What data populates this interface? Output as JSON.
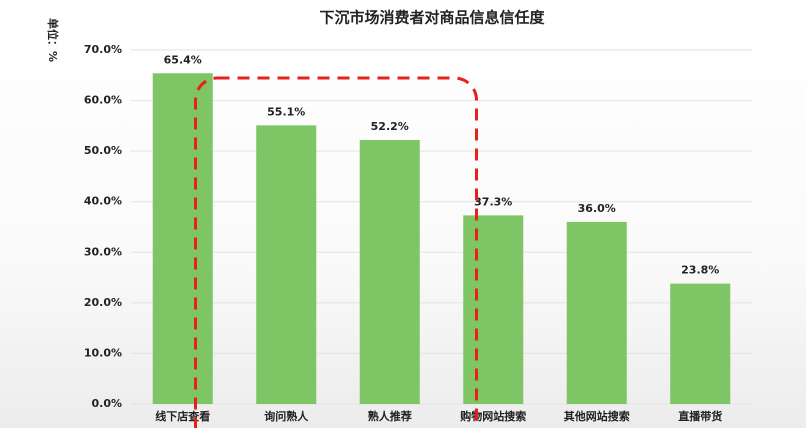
{
  "chart_data": {
    "type": "bar",
    "title": "下沉市场消费者对商品信息信任度",
    "y_label": "单位：%",
    "categories": [
      "线下店查看",
      "询问熟人",
      "熟人推荐",
      "购物网站搜索",
      "其他网站搜索",
      "直播带货"
    ],
    "values": [
      65.4,
      55.1,
      52.2,
      37.3,
      36.0,
      23.8
    ],
    "value_labels": [
      "65.4%",
      "55.1%",
      "52.2%",
      "37.3%",
      "36.0%",
      "23.8%"
    ],
    "color": "#7ec566",
    "ylim": [
      0,
      70
    ],
    "yticks": [
      {
        "value": 0,
        "label": "0.0%"
      },
      {
        "value": 10,
        "label": "10.0%"
      },
      {
        "value": 20,
        "label": "20.0%"
      },
      {
        "value": 30,
        "label": "30.0%"
      },
      {
        "value": 40,
        "label": "40.0%"
      },
      {
        "value": 50,
        "label": "50.0%"
      },
      {
        "value": 60,
        "label": "60.0%"
      },
      {
        "value": 70,
        "label": "70.0%"
      }
    ],
    "grid": true
  }
}
